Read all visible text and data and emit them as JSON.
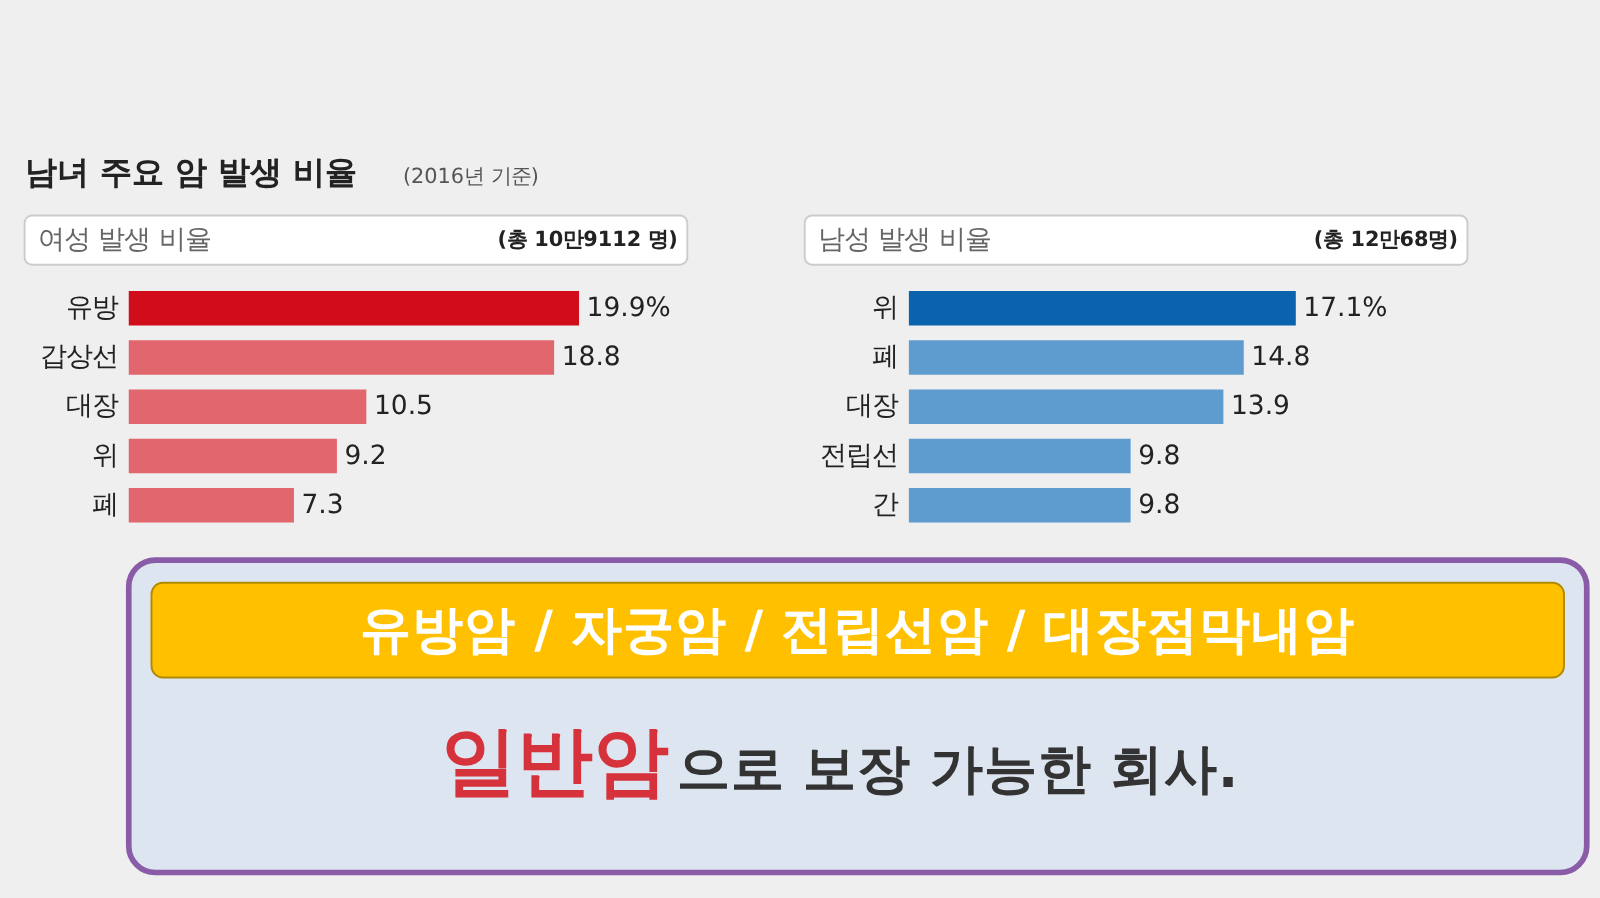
{
  "chart_data": [
    {
      "type": "bar",
      "orientation": "horizontal",
      "title": "남녀 주요 암 발생 비율",
      "subtitle": "(2016년 기준)",
      "categories": [
        "유방",
        "갑상선",
        "대장",
        "위",
        "폐"
      ],
      "values": [
        19.9,
        18.8,
        10.5,
        9.2,
        7.3
      ],
      "colors": [
        "#d10d1c",
        "#e2666d",
        "#e2666d",
        "#e2666d",
        "#e2666d"
      ],
      "value_labels": [
        "19.9%",
        "18.8",
        "10.5",
        "9.2",
        "7.3"
      ],
      "annotations": [
        "여성 발생 비율",
        "(총 10만9112 명)"
      ]
    },
    {
      "type": "bar",
      "orientation": "horizontal",
      "categories": [
        "위",
        "폐",
        "대장",
        "전립선",
        "간"
      ],
      "values": [
        17.1,
        14.8,
        13.9,
        9.8,
        9.8
      ],
      "colors": [
        "#0b62ad",
        "#5e9ccf",
        "#5e9ccf",
        "#5e9ccf",
        "#5e9ccf"
      ],
      "value_labels": [
        "17.1%",
        "14.8",
        "13.9",
        "9.8",
        "9.8"
      ],
      "annotations": [
        "남성 발생 비율",
        "(총 12만68명)",
        "유방암 / 자궁암 / 전립선암 / 대장점막내암",
        "일반암",
        "으로 보장 가능한 회사."
      ]
    }
  ]
}
